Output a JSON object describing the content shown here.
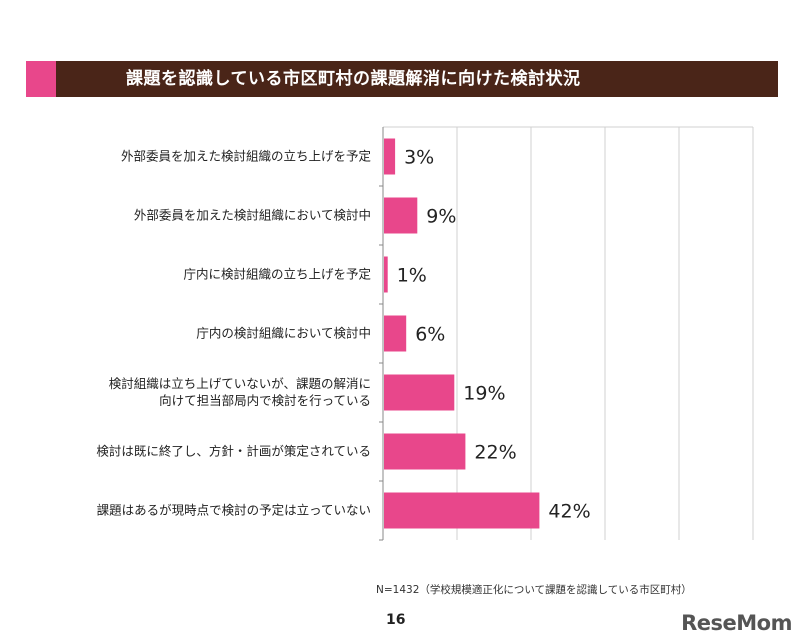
{
  "title": "課題を認識している市区町村の課題解消に向けた検討状況",
  "colors": {
    "title_bg": "#4a2518",
    "accent": "#e8478b",
    "bar": "#e8478b",
    "grid": "#d0d0d0"
  },
  "chart_data": {
    "type": "bar",
    "orientation": "horizontal",
    "categories": [
      [
        "外部委員を加えた検討組織の立ち上げを予定"
      ],
      [
        "外部委員を加えた検討組織において検討中"
      ],
      [
        "庁内に検討組織の立ち上げを予定"
      ],
      [
        "庁内の検討組織において検討中"
      ],
      [
        "検討組織は立ち上げていないが、課題の解消に",
        "向けて担当部局内で検討を行っている"
      ],
      [
        "検討は既に終了し、方針・計画が策定されている"
      ],
      [
        "課題はあるが現時点で検討の予定は立っていない"
      ]
    ],
    "values": [
      3,
      9,
      1,
      6,
      19,
      22,
      42
    ],
    "value_labels": [
      "3%",
      "9%",
      "1%",
      "6%",
      "19%",
      "22%",
      "42%"
    ],
    "xlim": [
      0,
      100
    ],
    "grid": true
  },
  "footnote": "N=1432（学校規模適正化について課題を認識している市区町村）",
  "page_number": "16",
  "logo": "ReseMom"
}
